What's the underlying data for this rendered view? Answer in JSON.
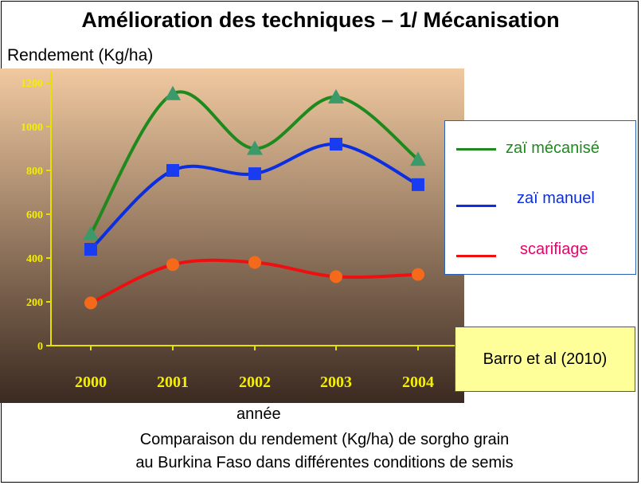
{
  "title": "Amélioration des techniques – 1/ Mécanisation",
  "source": "Barro et al (2010)",
  "caption": {
    "line1": "Comparaison du rendement (Kg/ha) de sorgho grain",
    "line2": "au Burkina Faso dans différentes conditions de semis"
  },
  "colors": {
    "plot_background_top": "#f0c9a0",
    "plot_background_bottom": "#3b2a21",
    "axis": "#e8e000",
    "tick_label": "#f4ee00"
  },
  "chart_data": {
    "type": "line",
    "xlabel": "année",
    "ylabel": "Rendement (Kg/ha)",
    "categories": [
      "2000",
      "2001",
      "2002",
      "2003",
      "2004"
    ],
    "ylim": [
      0,
      1200
    ],
    "yticks": [
      0,
      200,
      400,
      600,
      800,
      1000,
      1200
    ],
    "ytick_labels": [
      "0",
      "200",
      "400",
      "600",
      "800",
      "1000",
      "1200"
    ],
    "grid": false,
    "legend_position": "right",
    "series": [
      {
        "name": "zaï mécanisé",
        "color": "#1e8a1e",
        "marker": "triangle",
        "marker_color": "#3c9a6a",
        "values": [
          510,
          1150,
          900,
          1135,
          850
        ]
      },
      {
        "name": "zaï manuel",
        "color": "#0a2ee0",
        "marker": "square",
        "marker_color": "#1a3cf0",
        "values": [
          440,
          800,
          785,
          920,
          735
        ]
      },
      {
        "name": "scarifiage",
        "color": "#ee1010",
        "marker": "circle",
        "marker_color": "#f46a1a",
        "values": [
          195,
          370,
          380,
          315,
          325
        ]
      }
    ]
  }
}
